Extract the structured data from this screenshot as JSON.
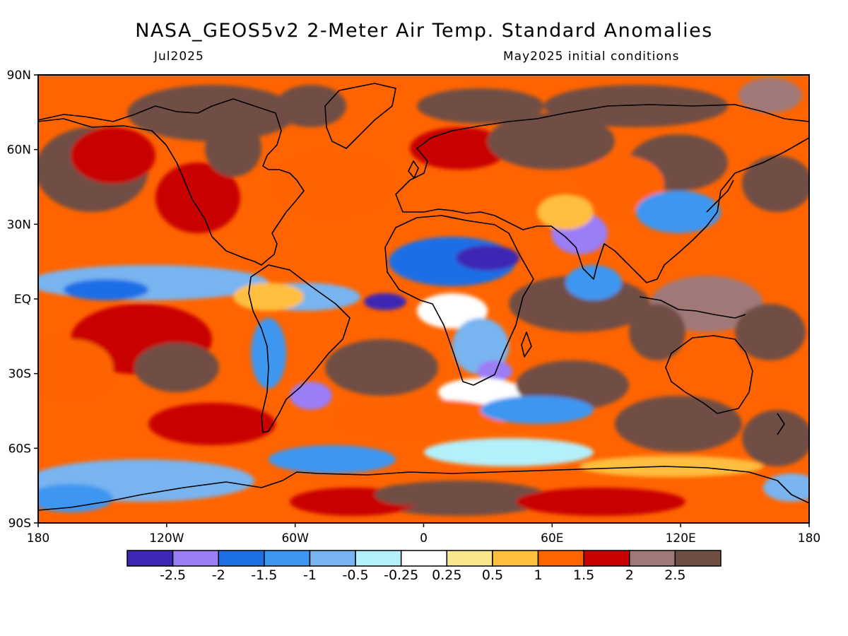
{
  "title": "NASA_GEOS5v2 2-Meter Air Temp. Standard Anomalies",
  "valid_month": "Jul2025",
  "init_label": "May2025 initial conditions",
  "colors": {
    "land_coast": "#000000",
    "background": "#ffffff"
  },
  "chart_data": {
    "type": "heatmap",
    "title": "NASA_GEOS5v2 2-Meter Air Temp. Standard Anomalies",
    "projection": "equirectangular",
    "lon_range": [
      -180,
      180
    ],
    "lat_range": [
      -90,
      90
    ],
    "x_ticks": [
      {
        "value": -180,
        "label": "180"
      },
      {
        "value": -120,
        "label": "120W"
      },
      {
        "value": -60,
        "label": "60W"
      },
      {
        "value": 0,
        "label": "0"
      },
      {
        "value": 60,
        "label": "60E"
      },
      {
        "value": 120,
        "label": "120E"
      },
      {
        "value": 180,
        "label": "180"
      }
    ],
    "y_ticks": [
      {
        "value": 90,
        "label": "90N"
      },
      {
        "value": 60,
        "label": "60N"
      },
      {
        "value": 30,
        "label": "30N"
      },
      {
        "value": 0,
        "label": "EQ"
      },
      {
        "value": -30,
        "label": "30S"
      },
      {
        "value": -60,
        "label": "60S"
      },
      {
        "value": -90,
        "label": "90S"
      }
    ],
    "colorbar": {
      "colors": [
        "#3c28b4",
        "#9b7df5",
        "#1e6ee6",
        "#3c96f0",
        "#78b4f0",
        "#b4f0fa",
        "#ffffff",
        "#fae68c",
        "#ffbe3c",
        "#ff6400",
        "#c80000",
        "#a07878",
        "#704e44"
      ],
      "labels": [
        "-2.5",
        "-2",
        "-1.5",
        "-1",
        "-0.5",
        "-0.25",
        "0.25",
        "0.5",
        "1",
        "1.5",
        "2",
        "2.5"
      ]
    }
  }
}
